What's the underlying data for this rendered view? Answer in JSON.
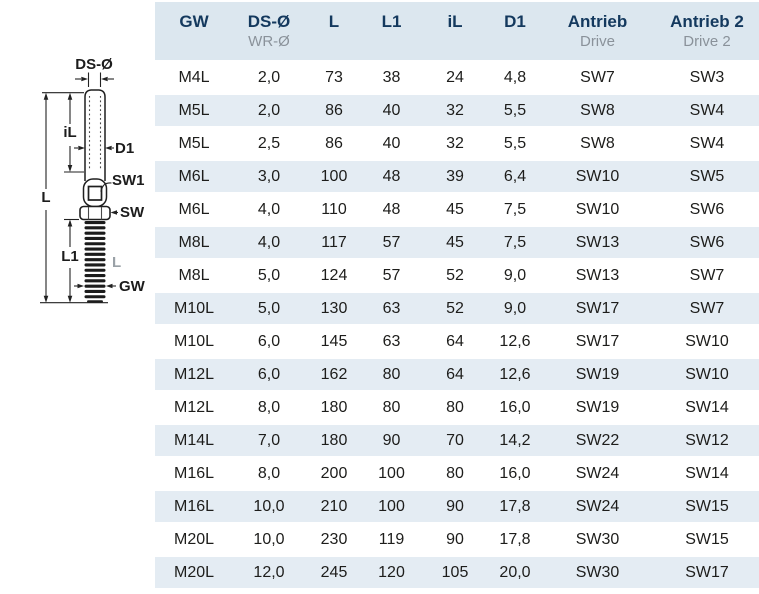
{
  "diagram": {
    "labels": {
      "ds_o": "DS-Ø",
      "il": "iL",
      "d1": "D1",
      "sw1": "SW1",
      "l_total": "L",
      "sw": "SW",
      "l1": "L1",
      "thread_l": "L",
      "gw": "GW"
    }
  },
  "table": {
    "columns": [
      {
        "label": "GW",
        "sub": ""
      },
      {
        "label": "DS-Ø",
        "sub": "WR-Ø"
      },
      {
        "label": "L",
        "sub": ""
      },
      {
        "label": "L1",
        "sub": ""
      },
      {
        "label": "iL",
        "sub": ""
      },
      {
        "label": "D1",
        "sub": ""
      },
      {
        "label": "Antrieb",
        "sub": "Drive"
      },
      {
        "label": "Antrieb 2",
        "sub": "Drive 2"
      }
    ],
    "rows": [
      [
        "M4L",
        "2,0",
        "73",
        "38",
        "24",
        "4,8",
        "SW7",
        "SW3"
      ],
      [
        "M5L",
        "2,0",
        "86",
        "40",
        "32",
        "5,5",
        "SW8",
        "SW4"
      ],
      [
        "M5L",
        "2,5",
        "86",
        "40",
        "32",
        "5,5",
        "SW8",
        "SW4"
      ],
      [
        "M6L",
        "3,0",
        "100",
        "48",
        "39",
        "6,4",
        "SW10",
        "SW5"
      ],
      [
        "M6L",
        "4,0",
        "110",
        "48",
        "45",
        "7,5",
        "SW10",
        "SW6"
      ],
      [
        "M8L",
        "4,0",
        "117",
        "57",
        "45",
        "7,5",
        "SW13",
        "SW6"
      ],
      [
        "M8L",
        "5,0",
        "124",
        "57",
        "52",
        "9,0",
        "SW13",
        "SW7"
      ],
      [
        "M10L",
        "5,0",
        "130",
        "63",
        "52",
        "9,0",
        "SW17",
        "SW7"
      ],
      [
        "M10L",
        "6,0",
        "145",
        "63",
        "64",
        "12,6",
        "SW17",
        "SW10"
      ],
      [
        "M12L",
        "6,0",
        "162",
        "80",
        "64",
        "12,6",
        "SW19",
        "SW10"
      ],
      [
        "M12L",
        "8,0",
        "180",
        "80",
        "80",
        "16,0",
        "SW19",
        "SW14"
      ],
      [
        "M14L",
        "7,0",
        "180",
        "90",
        "70",
        "14,2",
        "SW22",
        "SW12"
      ],
      [
        "M16L",
        "8,0",
        "200",
        "100",
        "80",
        "16,0",
        "SW24",
        "SW14"
      ],
      [
        "M16L",
        "10,0",
        "210",
        "100",
        "90",
        "17,8",
        "SW24",
        "SW15"
      ],
      [
        "M20L",
        "10,0",
        "230",
        "119",
        "90",
        "17,8",
        "SW30",
        "SW15"
      ],
      [
        "M20L",
        "12,0",
        "245",
        "120",
        "105",
        "20,0",
        "SW30",
        "SW17"
      ]
    ]
  },
  "colors": {
    "header_text": "#14395e",
    "header_sub_text": "#8a929a",
    "header_bg": "#dce7ef",
    "row_alt_bg": "#e4ecf3",
    "body_text": "#1d1d1b",
    "diagram_gray_label": "#9aa1a7"
  }
}
